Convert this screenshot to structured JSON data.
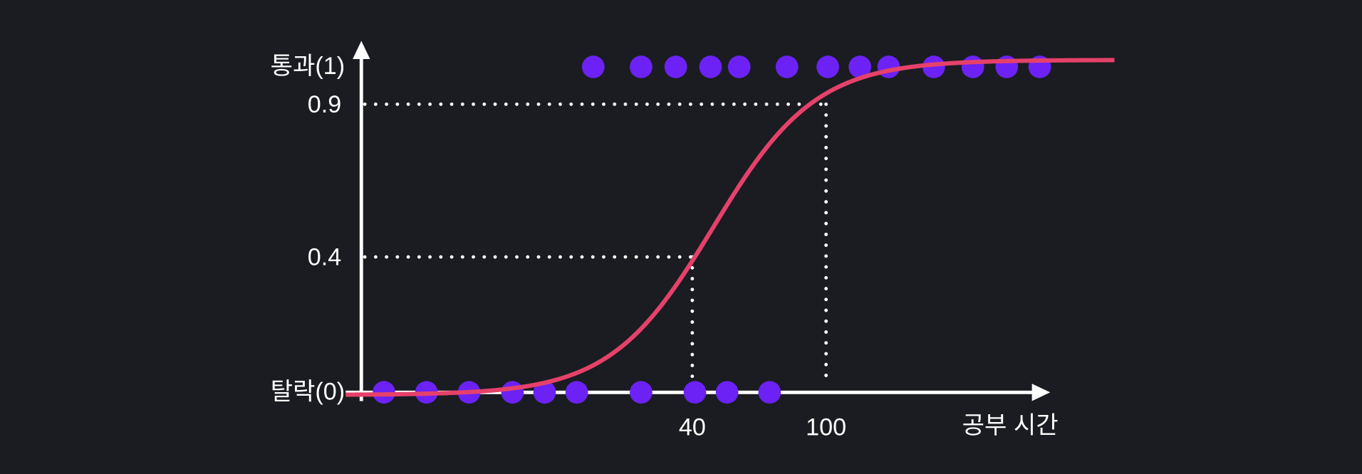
{
  "y_axis": {
    "top_label": "통과(1)",
    "bottom_label": "탈락(0)",
    "ticks": [
      "0.9",
      "0.4"
    ]
  },
  "x_axis": {
    "title": "공부 시간",
    "ticks": [
      "40",
      "100"
    ]
  }
}
